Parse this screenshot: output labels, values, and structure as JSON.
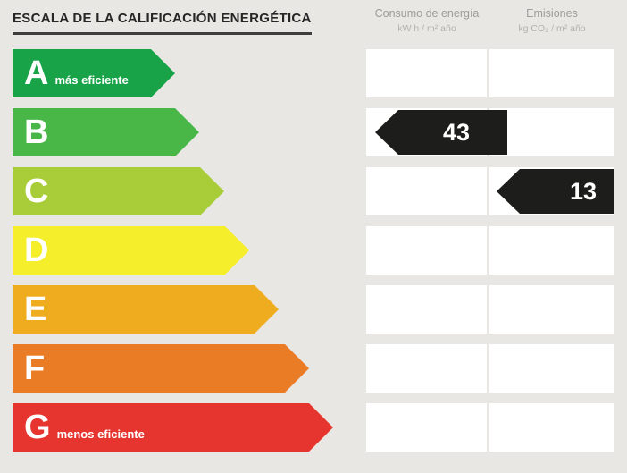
{
  "title": "ESCALA DE LA CALIFICACIÓN ENERGÉTICA",
  "columns": {
    "consumo": {
      "label": "Consumo de energía",
      "unit": "kW h / m² año"
    },
    "emisiones": {
      "label": "Emisiones",
      "unit": "kg CO₂ / m² año"
    }
  },
  "scale": [
    {
      "letter": "A",
      "label": "más eficiente",
      "color": "#18a349",
      "length": 182
    },
    {
      "letter": "B",
      "label": "",
      "color": "#48b748",
      "length": 209
    },
    {
      "letter": "C",
      "label": "",
      "color": "#a8cd38",
      "length": 237
    },
    {
      "letter": "D",
      "label": "",
      "color": "#f4ee2b",
      "length": 265
    },
    {
      "letter": "E",
      "label": "",
      "color": "#efac1f",
      "length": 298
    },
    {
      "letter": "F",
      "label": "",
      "color": "#ea7c25",
      "length": 332
    },
    {
      "letter": "G",
      "label": "menos eficiente",
      "color": "#e6352f",
      "length": 359
    }
  ],
  "values": {
    "consumo": {
      "rating": "B",
      "value": "43"
    },
    "emisiones": {
      "rating": "C",
      "value": "13"
    }
  },
  "colors": {
    "background": "#e9e7e4",
    "cell": "#ffffff",
    "badge": "#1d1d1b"
  },
  "chart_data": {
    "type": "bar",
    "title": "ESCALA DE LA CALIFICACIÓN ENERGÉTICA",
    "categories": [
      "A",
      "B",
      "C",
      "D",
      "E",
      "F",
      "G"
    ],
    "series": [
      {
        "name": "Consumo de energía (kW h / m² año)",
        "values": [
          null,
          43,
          null,
          null,
          null,
          null,
          null
        ]
      },
      {
        "name": "Emisiones (kg CO₂ / m² año)",
        "values": [
          null,
          null,
          13,
          null,
          null,
          null,
          null
        ]
      }
    ],
    "legend_position": "top",
    "notes": "Energy rating scale from A (más eficiente) to G (menos eficiente); arrow length increases from A to G. Consumption rated B = 43, emissions rated C = 13."
  }
}
